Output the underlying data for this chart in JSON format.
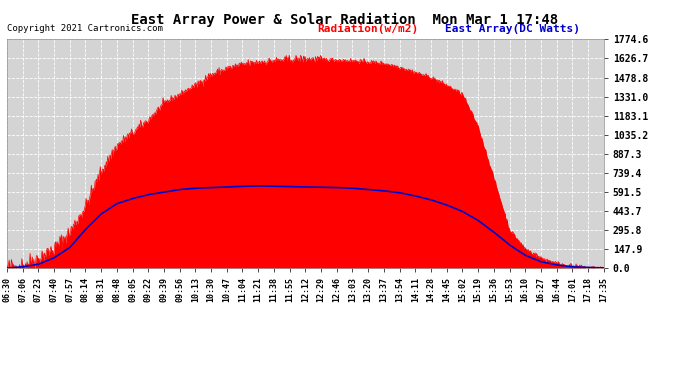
{
  "title": "East Array Power & Solar Radiation  Mon Mar 1 17:48",
  "copyright": "Copyright 2021 Cartronics.com",
  "legend_radiation": "Radiation(w/m2)",
  "legend_east": "East Array(DC Watts)",
  "yticks": [
    0.0,
    147.9,
    295.8,
    443.7,
    591.5,
    739.4,
    887.3,
    1035.2,
    1183.1,
    1331.0,
    1478.8,
    1626.7,
    1774.6
  ],
  "ymax": 1774.6,
  "bg_color": "#ffffff",
  "plot_bg": "#d4d4d4",
  "radiation_color": "#ff0000",
  "east_color": "#0000cc",
  "grid_color": "#ffffff",
  "xtick_labels": [
    "06:30",
    "07:06",
    "07:23",
    "07:40",
    "07:57",
    "08:14",
    "08:31",
    "08:48",
    "09:05",
    "09:22",
    "09:39",
    "09:56",
    "10:13",
    "10:30",
    "10:47",
    "11:04",
    "11:21",
    "11:38",
    "11:55",
    "12:12",
    "12:29",
    "12:46",
    "13:03",
    "13:20",
    "13:37",
    "13:54",
    "14:11",
    "14:28",
    "14:45",
    "15:02",
    "15:19",
    "15:36",
    "15:53",
    "16:10",
    "16:27",
    "16:44",
    "17:01",
    "17:18",
    "17:35"
  ],
  "radiation_values": [
    0,
    20,
    80,
    150,
    280,
    480,
    750,
    950,
    1050,
    1150,
    1280,
    1350,
    1420,
    1500,
    1550,
    1580,
    1600,
    1610,
    1620,
    1625,
    1620,
    1615,
    1610,
    1600,
    1590,
    1560,
    1520,
    1480,
    1420,
    1350,
    1100,
    700,
    300,
    150,
    80,
    40,
    15,
    5,
    2
  ],
  "east_values": [
    0,
    10,
    30,
    80,
    160,
    300,
    420,
    500,
    540,
    570,
    590,
    610,
    620,
    625,
    630,
    635,
    638,
    635,
    632,
    630,
    628,
    625,
    620,
    610,
    600,
    585,
    560,
    530,
    490,
    440,
    370,
    280,
    180,
    100,
    50,
    25,
    10,
    5,
    2
  ]
}
